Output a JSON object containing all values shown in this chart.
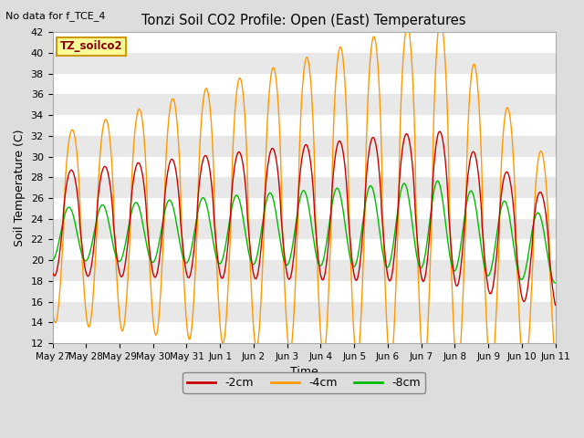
{
  "title": "Tonzi Soil CO2 Profile: Open (East) Temperatures",
  "no_data_label": "No data for f_TCE_4",
  "station_label": "TZ_soilco2",
  "ylabel": "Soil Temperature (C)",
  "xlabel": "Time",
  "ylim": [
    12,
    42
  ],
  "yticks": [
    12,
    14,
    16,
    18,
    20,
    22,
    24,
    26,
    28,
    30,
    32,
    34,
    36,
    38,
    40,
    42
  ],
  "xtick_labels": [
    "May 27",
    "May 28",
    "May 29",
    "May 30",
    "May 31",
    "Jun 1",
    "Jun 2",
    "Jun 3",
    "Jun 4",
    "Jun 5",
    "Jun 6",
    "Jun 7",
    "Jun 8",
    "Jun 9",
    "Jun 10",
    "Jun 11"
  ],
  "colors": {
    "neg2cm": "#cc0000",
    "neg4cm": "#ff9900",
    "neg8cm": "#00bb00",
    "background": "#dddddd",
    "plot_bg": "#e8e8e8",
    "band_light": "#f5f5f5",
    "band_dark": "#e0e0e0"
  },
  "legend_entries": [
    "-2cm",
    "-4cm",
    "-8cm"
  ],
  "figsize": [
    6.4,
    4.8
  ],
  "dpi": 100
}
